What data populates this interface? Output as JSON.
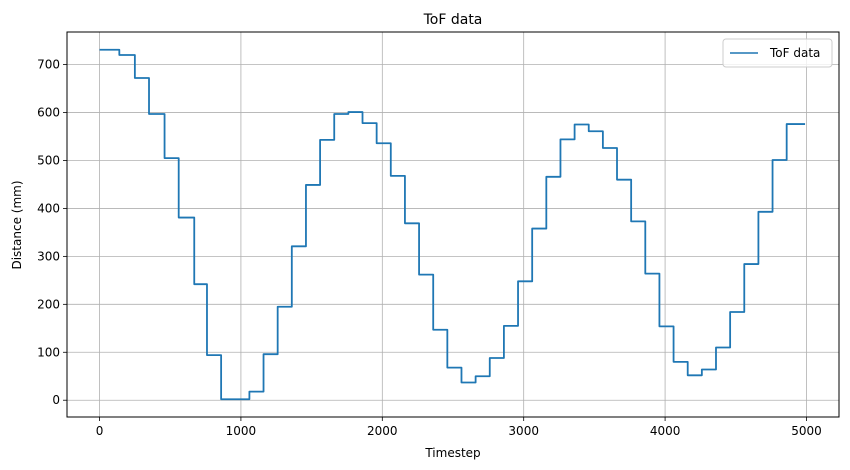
{
  "chart_data": {
    "type": "line",
    "title": "ToF data",
    "xlabel": "Timestep",
    "ylabel": "Distance (mm)",
    "xlim": [
      -230,
      5230
    ],
    "ylim": [
      -35,
      768
    ],
    "xticks": [
      0,
      1000,
      2000,
      3000,
      4000,
      5000
    ],
    "yticks": [
      0,
      100,
      200,
      300,
      400,
      500,
      600,
      700
    ],
    "grid": true,
    "legend": "upper right",
    "series": [
      {
        "name": "ToF data",
        "color": "#1f77b4",
        "steps": [
          [
            0,
            731
          ],
          [
            140,
            720
          ],
          [
            250,
            672
          ],
          [
            350,
            597
          ],
          [
            460,
            505
          ],
          [
            560,
            381
          ],
          [
            670,
            242
          ],
          [
            760,
            94
          ],
          [
            860,
            2
          ],
          [
            1060,
            18
          ],
          [
            1160,
            96
          ],
          [
            1260,
            195
          ],
          [
            1360,
            321
          ],
          [
            1460,
            449
          ],
          [
            1560,
            543
          ],
          [
            1660,
            597
          ],
          [
            1760,
            601
          ],
          [
            1860,
            578
          ],
          [
            1960,
            536
          ],
          [
            2060,
            468
          ],
          [
            2160,
            369
          ],
          [
            2260,
            262
          ],
          [
            2360,
            147
          ],
          [
            2460,
            68
          ],
          [
            2560,
            37
          ],
          [
            2660,
            50
          ],
          [
            2760,
            88
          ],
          [
            2860,
            155
          ],
          [
            2960,
            248
          ],
          [
            3060,
            358
          ],
          [
            3160,
            466
          ],
          [
            3260,
            544
          ],
          [
            3360,
            575
          ],
          [
            3460,
            561
          ],
          [
            3560,
            526
          ],
          [
            3660,
            460
          ],
          [
            3760,
            373
          ],
          [
            3860,
            264
          ],
          [
            3960,
            154
          ],
          [
            4060,
            80
          ],
          [
            4160,
            52
          ],
          [
            4260,
            64
          ],
          [
            4360,
            110
          ],
          [
            4460,
            184
          ],
          [
            4560,
            284
          ],
          [
            4660,
            393
          ],
          [
            4760,
            501
          ],
          [
            4860,
            576
          ]
        ],
        "x_end": 4990
      }
    ]
  }
}
